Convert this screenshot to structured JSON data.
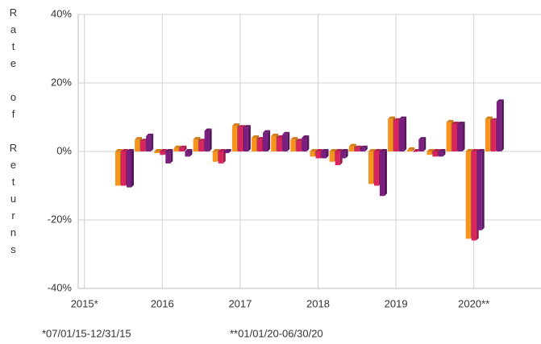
{
  "chart_data": {
    "type": "bar3d",
    "ylabel": "Rate of Returns",
    "categories": [
      null,
      null,
      null,
      null,
      null,
      null,
      null,
      null,
      null,
      null,
      null,
      null,
      null,
      null,
      null,
      null,
      null,
      null,
      null,
      null
    ],
    "series": [
      {
        "color": "#f7941d",
        "values": [
          -10,
          3.5,
          -0.5,
          1,
          3.5,
          -3,
          7.5,
          4,
          4.5,
          3.5,
          -1.5,
          -3,
          1.5,
          -9.5,
          9.5,
          0.5,
          -1,
          8.5,
          -25.5,
          9.5
        ]
      },
      {
        "color": "#d9245f",
        "values": [
          -10,
          3,
          -1,
          1,
          3,
          -3.5,
          7,
          3.5,
          4,
          3,
          -2,
          -4,
          1,
          -10,
          9,
          0,
          -1.5,
          8,
          -26,
          9
        ]
      },
      {
        "color": "#7a1f80",
        "values": [
          -10.5,
          4.5,
          -3.5,
          -1.5,
          6,
          -0.5,
          7,
          5.5,
          5,
          4,
          -2,
          -2,
          1,
          -13,
          9.5,
          3.5,
          -1.5,
          8,
          -23,
          14.5
        ]
      }
    ],
    "xticks": [
      "2015*",
      "2016",
      "2017",
      "2018",
      "2019",
      "2020**"
    ],
    "ylim": [
      -40,
      40
    ],
    "yticks": [
      {
        "value": -40,
        "label": "-40%"
      },
      {
        "value": -20,
        "label": "-20%"
      },
      {
        "value": 0,
        "label": "0%"
      },
      {
        "value": 20,
        "label": "20%"
      },
      {
        "value": 40,
        "label": "40%"
      }
    ],
    "grid": true,
    "footnotes": [
      "*07/01/15-12/31/15",
      "**01/01/20-06/30/20"
    ]
  }
}
